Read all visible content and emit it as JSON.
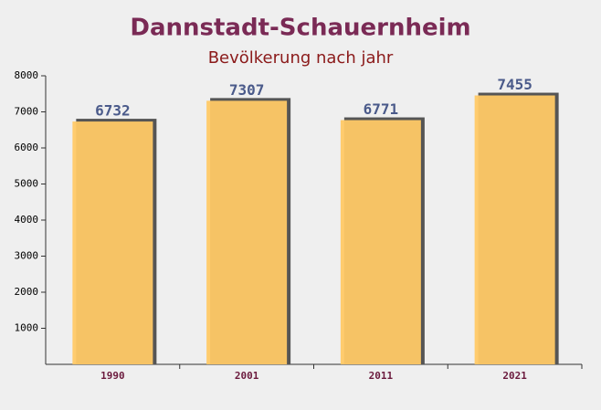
{
  "chart_data": {
    "type": "bar",
    "title": "Dannstadt-Schauernheim",
    "subtitle": "Bevölkerung nach jahr",
    "categories": [
      "1990",
      "2001",
      "2011",
      "2021"
    ],
    "values": [
      6732,
      7307,
      6771,
      7455
    ],
    "color": "#ffc966",
    "ylim": [
      0,
      8000
    ],
    "yticks": [
      1000,
      2000,
      3000,
      4000,
      5000,
      6000,
      7000,
      8000
    ]
  }
}
